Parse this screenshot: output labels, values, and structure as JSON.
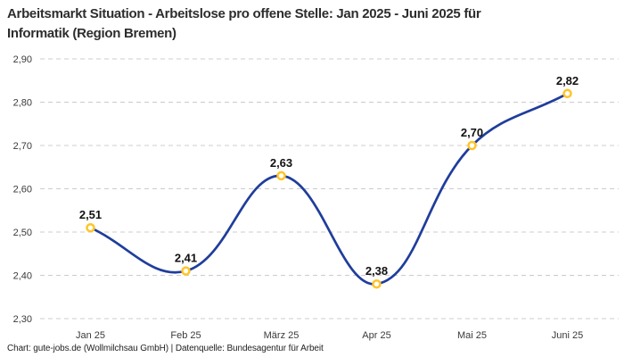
{
  "title": {
    "line1": "Arbeitsmarkt Situation - Arbeitslose pro offene Stelle: Jan 2025 - Juni 2025 für",
    "line2": "Informatik (Region Bremen)"
  },
  "footer": {
    "attribution": "Chart: gute-jobs.de (Wollmilchsau GmbH) | Datenquelle: Bundesagentur für Arbeit"
  },
  "chart_data": {
    "type": "line",
    "title": "Arbeitsmarkt Situation - Arbeitslose pro offene Stelle: Jan 2025 - Juni 2025 für Informatik (Region Bremen)",
    "categories": [
      "Jan 25",
      "Feb 25",
      "März 25",
      "Apr 25",
      "Mai 25",
      "Juni 25"
    ],
    "values": [
      2.51,
      2.41,
      2.63,
      2.38,
      2.7,
      2.82
    ],
    "value_labels": [
      "2,51",
      "2,41",
      "2,63",
      "2,38",
      "2,70",
      "2,82"
    ],
    "xlabel": "",
    "ylabel": "",
    "ylim": [
      2.3,
      2.9
    ],
    "yticks": [
      2.9,
      2.8,
      2.7,
      2.6,
      2.5,
      2.4,
      2.3
    ],
    "ytick_labels": [
      "2,90",
      "2,80",
      "2,70",
      "2,60",
      "2,50",
      "2,40",
      "2,30"
    ],
    "grid": "dashed-horizontal",
    "legend": "none",
    "curve": "smooth",
    "colors": {
      "line": "#1f3d9c",
      "marker_ring": "#ffc527",
      "marker_fill": "#ffffff",
      "grid": "#cccccc",
      "tick_label": "#3a3a3a",
      "data_label": "#111111"
    }
  }
}
